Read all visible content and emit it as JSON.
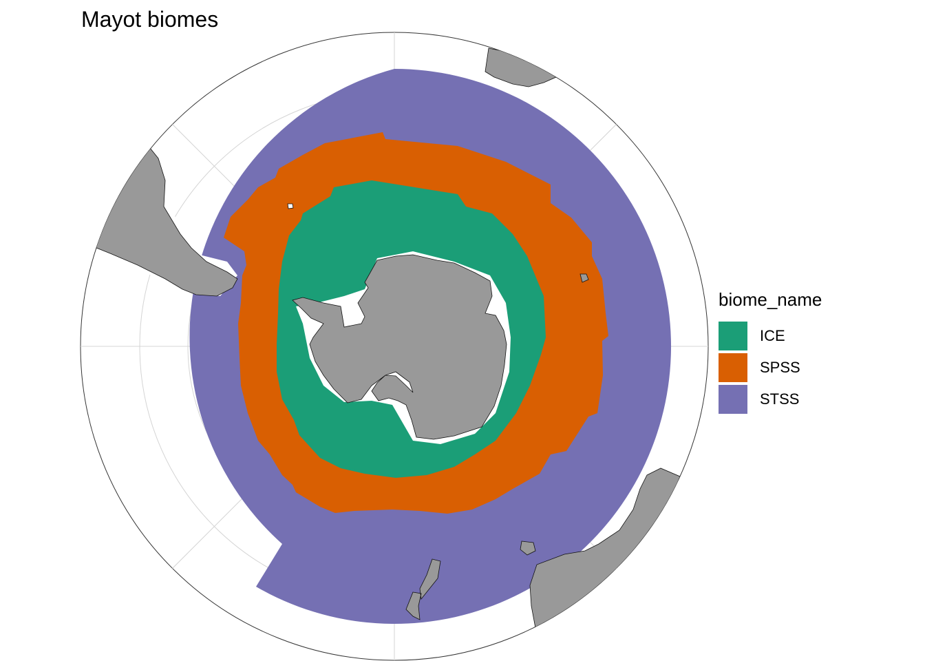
{
  "title": "Mayot biomes",
  "legend": {
    "title": "biome_name",
    "placement": "right",
    "items": [
      {
        "label": "ICE",
        "color": "#1B9E77"
      },
      {
        "label": "SPSS",
        "color": "#D95F02"
      },
      {
        "label": "STSS",
        "color": "#7570B3"
      }
    ]
  },
  "map": {
    "projection": "south polar stereographic",
    "graticule": true,
    "land_color": "#999999",
    "ocean_color": "#ffffff"
  }
}
